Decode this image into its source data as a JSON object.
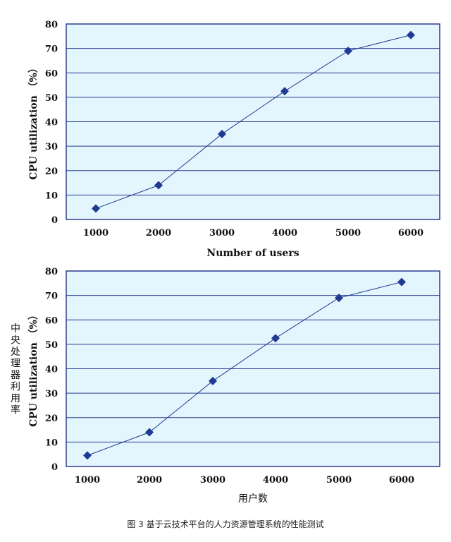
{
  "caption": "图 3  基于云技术平台的人力资源管理系统的性能测试",
  "colors": {
    "plot_bg": "#e4f6fd",
    "frame": "#2b3f8f",
    "grid": "#2b3f8f",
    "series": "#1f3a93"
  },
  "chart_data": [
    {
      "type": "line",
      "x": [
        1000,
        2000,
        3000,
        4000,
        5000,
        6000
      ],
      "series": [
        {
          "values": [
            4.5,
            14,
            35,
            52.5,
            69,
            75.5
          ]
        }
      ],
      "xlabel": "Number of users",
      "ylabel": "CPU utilization （%）",
      "ylim": [
        0,
        80
      ],
      "yticks": [
        0,
        10,
        20,
        30,
        40,
        50,
        60,
        70,
        80
      ],
      "xticks": [
        "1000",
        "2000",
        "3000",
        "4000",
        "5000",
        "6000"
      ],
      "grid": "horizontal",
      "marker": "diamond"
    },
    {
      "type": "line",
      "x": [
        1000,
        2000,
        3000,
        4000,
        5000,
        6000
      ],
      "series": [
        {
          "values": [
            4.5,
            14,
            35,
            52.5,
            69,
            75.5
          ]
        }
      ],
      "xlabel": "用户数",
      "ylabel": "CPU utilization （%）",
      "ylabel_secondary": "中央处理器利用率",
      "ylim": [
        0,
        80
      ],
      "yticks": [
        0,
        10,
        20,
        30,
        40,
        50,
        60,
        70,
        80
      ],
      "xticks": [
        "1000",
        "2000",
        "3000",
        "4000",
        "5000",
        "6000"
      ],
      "grid": "horizontal",
      "marker": "diamond"
    }
  ]
}
